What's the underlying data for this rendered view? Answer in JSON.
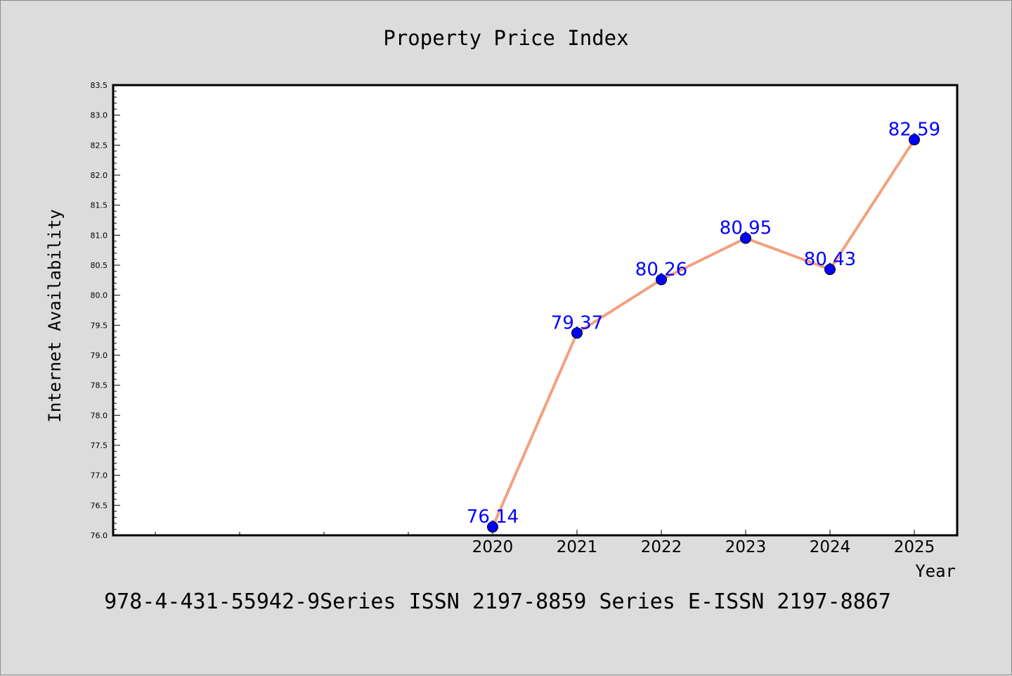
{
  "chart_data": {
    "type": "line",
    "title": "Property Price Index",
    "xlabel": "Year",
    "ylabel": "Internet Availability",
    "x": [
      "2020",
      "2021",
      "2022",
      "2023",
      "2024",
      "2025"
    ],
    "series": [
      {
        "values": [
          76.14,
          79.37,
          80.26,
          80.95,
          80.43,
          82.59
        ]
      }
    ],
    "data_labels": [
      "76.14",
      "79.37",
      "80.26",
      "80.95",
      "80.43",
      "82.59"
    ],
    "ylim": [
      76.0,
      83.5
    ],
    "y_ticks": [
      "76.0",
      "76.5",
      "77.0",
      "77.5",
      "78.0",
      "78.5",
      "79.0",
      "79.5",
      "80.0",
      "80.5",
      "81.0",
      "81.5",
      "82.0",
      "82.5",
      "83.0",
      "83.5"
    ],
    "grid": false,
    "legend": "none",
    "colors": {
      "line": "#f4a07e",
      "marker": "#0000ff",
      "label": "#0000ff",
      "background": "#dcdcdc",
      "plot_bg": "#ffffff"
    }
  },
  "footer": {
    "text": "978-4-431-55942-9Series ISSN 2197-8859 Series E-ISSN 2197-8867"
  }
}
